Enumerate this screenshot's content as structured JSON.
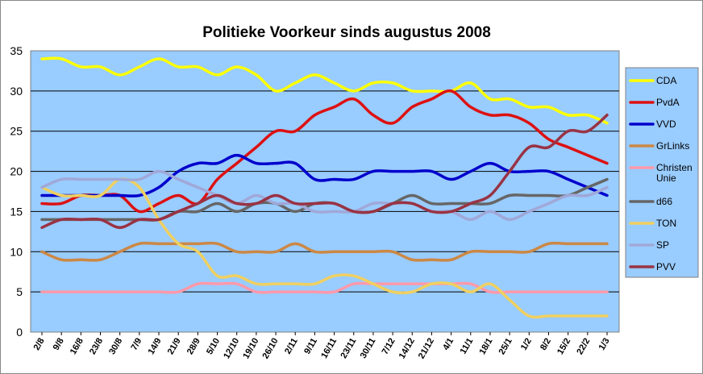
{
  "chart_data": {
    "type": "line",
    "title": "Politieke Voorkeur sinds  augustus 2008",
    "xlabel": "",
    "ylabel": "",
    "ylim": [
      0,
      35
    ],
    "yticks": [
      "0",
      "5",
      "10",
      "15",
      "20",
      "25",
      "30",
      "35"
    ],
    "grid": true,
    "legend_position": "right",
    "plot_background": "#99ccff",
    "categories": [
      "2/8",
      "9/8",
      "16/8",
      "23/8",
      "30/8",
      "7/9",
      "14/9",
      "21/9",
      "28/9",
      "5/10",
      "12/10",
      "19/10",
      "26/10",
      "2/11",
      "9/11",
      "16/11",
      "23/11",
      "30/11",
      "7/12",
      "14/12",
      "21/12",
      "4/1",
      "11/1",
      "18/1",
      "25/1",
      "1/2",
      "8/2",
      "15/2",
      "22/2",
      "1/3"
    ],
    "series": [
      {
        "name": "CDA",
        "color": "#ffff00",
        "values": [
          34,
          34,
          33,
          33,
          32,
          33,
          34,
          33,
          33,
          32,
          33,
          32,
          30,
          31,
          32,
          31,
          30,
          31,
          31,
          30,
          30,
          30,
          31,
          29,
          29,
          28,
          28,
          27,
          27,
          26
        ]
      },
      {
        "name": "PvdA",
        "color": "#dd1111",
        "values": [
          16,
          16,
          17,
          17,
          17,
          15,
          16,
          17,
          16,
          19,
          21,
          23,
          25,
          25,
          27,
          28,
          29,
          27,
          26,
          28,
          29,
          30,
          28,
          27,
          27,
          26,
          24,
          23,
          22,
          21
        ]
      },
      {
        "name": "VVD",
        "color": "#0000cc",
        "values": [
          17,
          17,
          17,
          17,
          17,
          17,
          18,
          20,
          21,
          21,
          22,
          21,
          21,
          21,
          19,
          19,
          19,
          20,
          20,
          20,
          20,
          19,
          20,
          21,
          20,
          20,
          20,
          19,
          18,
          17
        ]
      },
      {
        "name": "GrLinks",
        "color": "#cc8844",
        "values": [
          10,
          9,
          9,
          9,
          10,
          11,
          11,
          11,
          11,
          11,
          10,
          10,
          10,
          11,
          10,
          10,
          10,
          10,
          10,
          9,
          9,
          9,
          10,
          10,
          10,
          10,
          11,
          11,
          11,
          11
        ]
      },
      {
        "name": "Christen Unie",
        "color": "#ff99aa",
        "values": [
          5,
          5,
          5,
          5,
          5,
          5,
          5,
          5,
          6,
          6,
          6,
          5,
          5,
          5,
          5,
          5,
          6,
          6,
          6,
          6,
          6,
          6,
          6,
          5,
          5,
          5,
          5,
          5,
          5,
          5
        ]
      },
      {
        "name": "d66",
        "color": "#666666",
        "values": [
          14,
          14,
          14,
          14,
          14,
          14,
          14,
          15,
          15,
          16,
          15,
          16,
          16,
          15,
          16,
          16,
          15,
          15,
          16,
          17,
          16,
          16,
          16,
          16,
          17,
          17,
          17,
          17,
          18,
          19
        ]
      },
      {
        "name": "TON",
        "color": "#f0d060",
        "values": [
          18,
          17,
          17,
          17,
          19,
          18,
          14,
          11,
          10,
          7,
          7,
          6,
          6,
          6,
          6,
          7,
          7,
          6,
          5,
          5,
          6,
          6,
          5,
          6,
          4,
          2,
          2,
          2,
          2,
          2
        ]
      },
      {
        "name": "SP",
        "color": "#a0a8d8",
        "values": [
          18,
          19,
          19,
          19,
          19,
          19,
          20,
          19,
          18,
          17,
          16,
          17,
          16,
          16,
          15,
          15,
          15,
          16,
          16,
          16,
          15,
          15,
          14,
          15,
          14,
          15,
          16,
          17,
          17,
          18
        ]
      },
      {
        "name": "PVV",
        "color": "#993344",
        "values": [
          13,
          14,
          14,
          14,
          13,
          14,
          14,
          15,
          16,
          17,
          16,
          16,
          17,
          16,
          16,
          16,
          15,
          15,
          16,
          16,
          15,
          15,
          16,
          17,
          20,
          23,
          23,
          25,
          25,
          27
        ]
      }
    ]
  }
}
